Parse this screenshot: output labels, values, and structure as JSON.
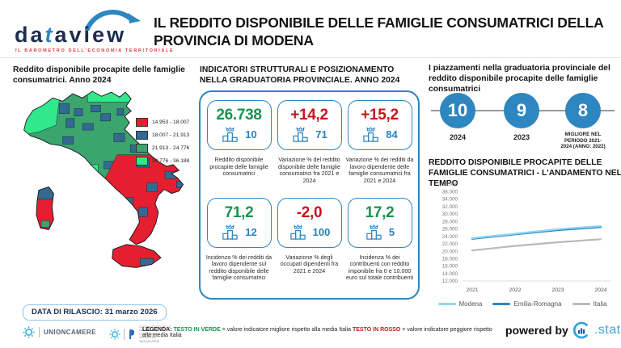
{
  "theme": {
    "accent": "#2e86c1",
    "rank_blue": "#2980b9",
    "green": "#17944f",
    "red": "#c4161c",
    "navy": "#1d2d50"
  },
  "brand": {
    "word_part1": "da",
    "word_t": "t",
    "word_part2": "aview",
    "tagline": "IL BAROMETRO DELL'ECONOMIA TERRITORIALE"
  },
  "header": {
    "title": "IL REDDITO DISPONIBILE DELLE FAMIGLIE CONSUMATRICI DELLA PROVINCIA DI MODENA"
  },
  "map_panel": {
    "title": "Reddito disponibile procapite delle famiglie consumatrici. Anno 2024",
    "legend": [
      {
        "label": "14.953 - 18.007",
        "color": "#e51f2f"
      },
      {
        "label": "18.007 - 21.913",
        "color": "#336a92"
      },
      {
        "label": "21.913 - 24.776",
        "color": "#3ba56d"
      },
      {
        "label": "24.776 - 36.188",
        "color": "#2fe98c"
      }
    ]
  },
  "indicators_panel": {
    "title": "INDICATORI STRUTTURALI E POSIZIONAMENTO NELLA GRADUATORIA PROVINCIALE. ANNO 2024",
    "cards": [
      {
        "value": "26.738",
        "value_color": "#17944f",
        "rank": "10",
        "caption": "Reddito disponibile procapite delle famiglie consumatrici"
      },
      {
        "value": "+14,2",
        "value_color": "#c4161c",
        "rank": "71",
        "caption": "Variazione % del reddito disponibile delle famiglie consumatrici fra 2021 e 2024"
      },
      {
        "value": "+15,2",
        "value_color": "#c4161c",
        "rank": "84",
        "caption": "Variazione % dei redditi da lavoro dipendente delle famiglie consumatrici fra 2021 e 2024"
      },
      {
        "value": "71,2",
        "value_color": "#17944f",
        "rank": "12",
        "caption": "Incidenza % dei redditi da lavoro dipendente sul reddito disponibile delle famiglie consumatrici"
      },
      {
        "value": "-2,0",
        "value_color": "#c4161c",
        "rank": "100",
        "caption": "Variazione % degli occupati dipendenti fra 2021 e 2024"
      },
      {
        "value": "17,2",
        "value_color": "#17944f",
        "rank": "5",
        "caption": "Incidenza % dei contribuenti con reddito imponibile fra 0 e 10.000 euro sul totale contribuenti"
      }
    ]
  },
  "ranking_panel": {
    "title": "I piazzamenti nella graduatoria provinciale del reddito disponibile procapite delle famiglie consumatrici",
    "items": [
      {
        "value": "10",
        "label": "2024"
      },
      {
        "value": "9",
        "label": "2023"
      },
      {
        "value": "8",
        "label": "MIGLIORE NEL PERIODO 2021-2024 (ANNO: 2022)"
      }
    ]
  },
  "chart_data": {
    "type": "line",
    "title": "REDDITO DISPONIBILE PROCAPITE DELLE FAMIGLIE CONSUMATRICI - L'ANDAMENTO NEL TEMPO",
    "x": [
      "2021",
      "2022",
      "2023",
      "2024"
    ],
    "ylim": [
      12000,
      38000
    ],
    "ytick_step": 2000,
    "ytick_labels": [
      "38.000",
      "36.000",
      "34.000",
      "32.000",
      "30.000",
      "28.000",
      "26.000",
      "24.000",
      "22.000",
      "20.000",
      "18.000",
      "16.000",
      "14.000",
      "12.000"
    ],
    "series": [
      {
        "name": "Modena",
        "color": "#8fd6f3",
        "values": [
          23500,
          24700,
          25900,
          26738
        ]
      },
      {
        "name": "Emilia-Romagna",
        "color": "#2e86c1",
        "values": [
          23300,
          24500,
          25650,
          26450
        ]
      },
      {
        "name": "Italia",
        "color": "#b9b9b9",
        "values": [
          20200,
          21400,
          22400,
          23200
        ]
      }
    ],
    "grid": false,
    "legend_position": "bottom"
  },
  "footer": {
    "release": "DATA DI RILASCIO: 31 marzo 2026",
    "unioncamere": "UNIONCAMERE",
    "tagliacarne": "CENTRO STUDI DELLE CAMERE DI COMMERCIO GUGLIELMO TAGLIACARNE",
    "legenda_label": "LEGENDA:",
    "green_term": "TESTO IN VERDE",
    "green_desc": "= valore indicatore migliore rispetto alla media Italia",
    "red_term": "TESTO IN ROSSO",
    "red_desc": "= valore indicatore peggiore rispetto alla media Italia",
    "powered_by": "powered by",
    "stat_label": ".stat"
  }
}
